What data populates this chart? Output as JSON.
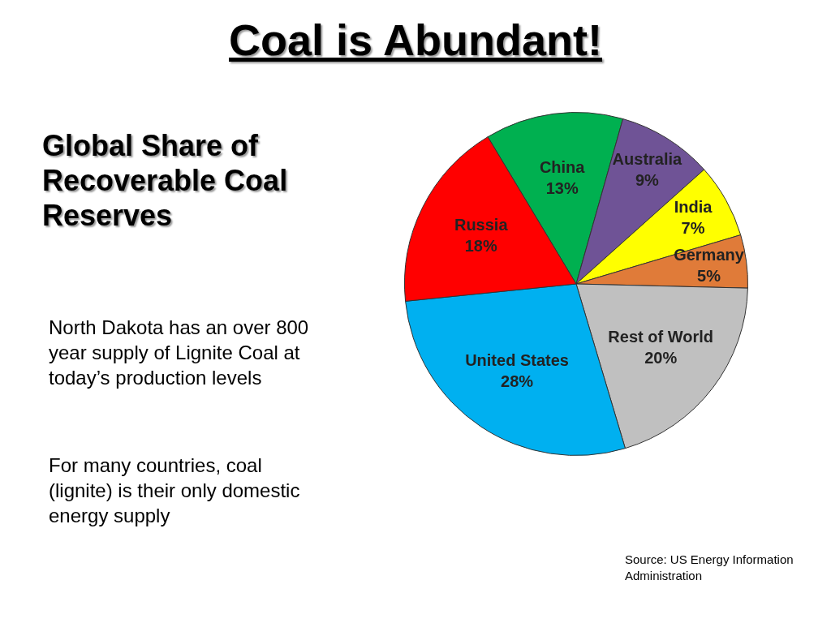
{
  "chart_data": {
    "type": "pie",
    "title": "Coal is Abundant!",
    "subtitle": "Global Share of Recoverable Coal Reserves",
    "categories": [
      "China",
      "Australia",
      "India",
      "Germany",
      "Rest of World",
      "United States",
      "Russia"
    ],
    "values": [
      13,
      9,
      7,
      5,
      20,
      28,
      18
    ],
    "value_labels": [
      "13%",
      "9%",
      "7%",
      "5%",
      "20%",
      "28%",
      "18%"
    ],
    "colors": [
      "#00b050",
      "#6f5396",
      "#ffff00",
      "#e07b39",
      "#c0c0c0",
      "#00b0f0",
      "#ff0000"
    ],
    "legend": false,
    "annotations": [
      "North Dakota has an over 800 year supply of Lignite Coal at today’s production levels",
      "For many countries, coal (lignite) is their only domestic energy supply",
      "Source: US Energy Information Administration"
    ]
  }
}
